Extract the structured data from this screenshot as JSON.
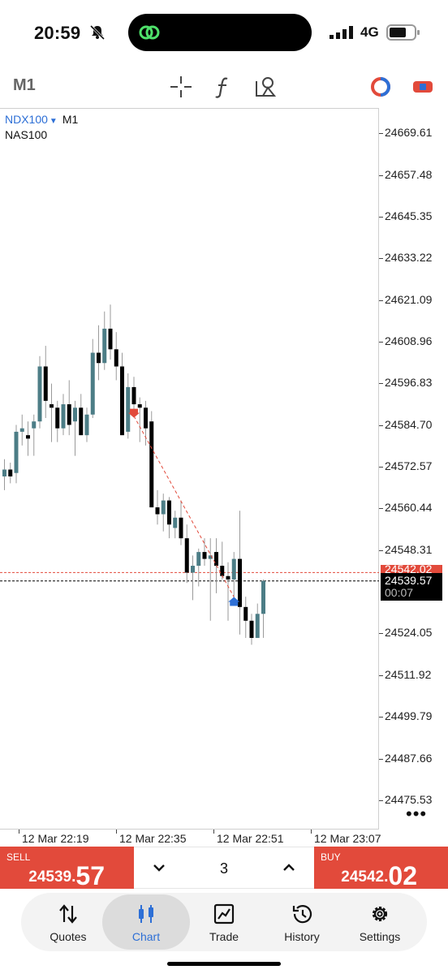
{
  "status": {
    "time": "20:59",
    "network": "4G"
  },
  "toolbar": {
    "timeframe": "M1"
  },
  "chart": {
    "symbol": "NDX100",
    "timeframe": "M1",
    "description": "NAS100",
    "price_labels": [
      "24669.61",
      "24657.48",
      "24645.35",
      "24633.22",
      "24621.09",
      "24608.96",
      "24596.83",
      "24584.70",
      "24572.57",
      "24560.44",
      "24548.31",
      "24524.05",
      "24511.92",
      "24499.79",
      "24487.66",
      "24475.53"
    ],
    "ask_label": "24542.02",
    "bid_label": "24539.57",
    "countdown": "00:07",
    "time_labels": [
      "12 Mar 22:19",
      "12 Mar 22:35",
      "12 Mar 22:51",
      "12 Mar 23:07"
    ],
    "more": "•••"
  },
  "chart_data": {
    "type": "candlestick",
    "symbol": "NDX100",
    "timeframe": "M1",
    "ylim": [
      24467,
      24677
    ],
    "ask_line": 24542.02,
    "bid_line": 24539.57,
    "candles": [
      {
        "o": 24570.0,
        "h": 24575.0,
        "l": 24566.0,
        "c": 24572.0
      },
      {
        "o": 24572.0,
        "h": 24574.0,
        "l": 24568.0,
        "c": 24570.0
      },
      {
        "o": 24571.0,
        "h": 24585.0,
        "l": 24568.0,
        "c": 24583.0
      },
      {
        "o": 24583.0,
        "h": 24588.0,
        "l": 24579.0,
        "c": 24584.0
      },
      {
        "o": 24582.0,
        "h": 24586.0,
        "l": 24576.0,
        "c": 24581.0
      },
      {
        "o": 24584.0,
        "h": 24588.0,
        "l": 24576.0,
        "c": 24586.0
      },
      {
        "o": 24586.0,
        "h": 24605.0,
        "l": 24584.0,
        "c": 24602.0
      },
      {
        "o": 24602.0,
        "h": 24608.0,
        "l": 24587.0,
        "c": 24592.0
      },
      {
        "o": 24591.0,
        "h": 24597.0,
        "l": 24580.0,
        "c": 24590.0
      },
      {
        "o": 24590.0,
        "h": 24592.0,
        "l": 24580.0,
        "c": 24584.0
      },
      {
        "o": 24584.0,
        "h": 24594.0,
        "l": 24582.0,
        "c": 24591.0
      },
      {
        "o": 24591.0,
        "h": 24598.0,
        "l": 24582.0,
        "c": 24585.0
      },
      {
        "o": 24586.0,
        "h": 24592.0,
        "l": 24576.0,
        "c": 24590.0
      },
      {
        "o": 24590.0,
        "h": 24594.0,
        "l": 24582.0,
        "c": 24582.0
      },
      {
        "o": 24582.0,
        "h": 24590.0,
        "l": 24580.0,
        "c": 24588.0
      },
      {
        "o": 24588.0,
        "h": 24610.0,
        "l": 24587.0,
        "c": 24606.0
      },
      {
        "o": 24606.0,
        "h": 24614.0,
        "l": 24598.0,
        "c": 24603.0
      },
      {
        "o": 24603.0,
        "h": 24618.0,
        "l": 24601.0,
        "c": 24613.0
      },
      {
        "o": 24613.0,
        "h": 24620.0,
        "l": 24604.0,
        "c": 24607.0
      },
      {
        "o": 24607.0,
        "h": 24612.0,
        "l": 24598.0,
        "c": 24602.0
      },
      {
        "o": 24602.0,
        "h": 24606.0,
        "l": 24582.0,
        "c": 24582.0
      },
      {
        "o": 24583.0,
        "h": 24600.0,
        "l": 24581.0,
        "c": 24596.0
      },
      {
        "o": 24596.0,
        "h": 24599.0,
        "l": 24588.0,
        "c": 24591.0
      },
      {
        "o": 24591.0,
        "h": 24593.0,
        "l": 24580.0,
        "c": 24590.0
      },
      {
        "o": 24590.0,
        "h": 24592.0,
        "l": 24579.0,
        "c": 24584.0
      },
      {
        "o": 24586.0,
        "h": 24589.0,
        "l": 24561.0,
        "c": 24561.0
      },
      {
        "o": 24561.0,
        "h": 24566.0,
        "l": 24556.0,
        "c": 24559.0
      },
      {
        "o": 24559.0,
        "h": 24565.0,
        "l": 24554.0,
        "c": 24563.0
      },
      {
        "o": 24563.0,
        "h": 24564.0,
        "l": 24552.0,
        "c": 24556.0
      },
      {
        "o": 24555.0,
        "h": 24560.0,
        "l": 24552.0,
        "c": 24558.0
      },
      {
        "o": 24558.0,
        "h": 24563.0,
        "l": 24550.0,
        "c": 24552.0
      },
      {
        "o": 24552.0,
        "h": 24556.0,
        "l": 24539.0,
        "c": 24542.0
      },
      {
        "o": 24542.0,
        "h": 24547.0,
        "l": 24534.0,
        "c": 24544.0
      },
      {
        "o": 24544.0,
        "h": 24549.0,
        "l": 24538.0,
        "c": 24548.0
      },
      {
        "o": 24548.0,
        "h": 24552.0,
        "l": 24544.0,
        "c": 24546.0
      },
      {
        "o": 24546.0,
        "h": 24552.0,
        "l": 24528.0,
        "c": 24547.0
      },
      {
        "o": 24548.0,
        "h": 24552.0,
        "l": 24536.0,
        "c": 24544.0
      },
      {
        "o": 24544.0,
        "h": 24551.0,
        "l": 24540.0,
        "c": 24541.0
      },
      {
        "o": 24541.0,
        "h": 24545.0,
        "l": 24528.0,
        "c": 24540.0
      },
      {
        "o": 24540.0,
        "h": 24548.0,
        "l": 24534.0,
        "c": 24546.0
      },
      {
        "o": 24546.0,
        "h": 24560.0,
        "l": 24524.0,
        "c": 24532.0
      },
      {
        "o": 24532.0,
        "h": 24535.0,
        "l": 24523.0,
        "c": 24528.0
      },
      {
        "o": 24528.0,
        "h": 24530.0,
        "l": 24521.0,
        "c": 24523.0
      },
      {
        "o": 24523.0,
        "h": 24533.0,
        "l": 24523.0,
        "c": 24530.0
      },
      {
        "o": 24530.0,
        "h": 24540.0,
        "l": 24523.0,
        "c": 24539.6
      }
    ],
    "markers": [
      {
        "type": "sell",
        "candle": 22,
        "price": 24588.5
      },
      {
        "type": "buy",
        "candle": 39,
        "price": 24533.5
      }
    ],
    "time_labels": [
      "12 Mar 22:19",
      "12 Mar 22:35",
      "12 Mar 22:51",
      "12 Mar 23:07"
    ],
    "colors": {
      "bull": "#4c7d86",
      "bear": "#000000",
      "sell_marker": "#e24a3b",
      "buy_marker": "#2d6fd6",
      "ask_line": "#e24a3b",
      "bid_line": "#000000"
    }
  },
  "trade": {
    "sell_caption": "SELL",
    "sell_price_main": "24539.",
    "sell_price_big": "57",
    "buy_caption": "BUY",
    "buy_price_main": "24542.",
    "buy_price_big": "02",
    "lot": "3"
  },
  "tabs": [
    {
      "label": "Quotes",
      "icon": "quotes-icon"
    },
    {
      "label": "Chart",
      "icon": "chart-icon",
      "active": true
    },
    {
      "label": "Trade",
      "icon": "trade-icon"
    },
    {
      "label": "History",
      "icon": "history-icon"
    },
    {
      "label": "Settings",
      "icon": "settings-icon"
    }
  ]
}
